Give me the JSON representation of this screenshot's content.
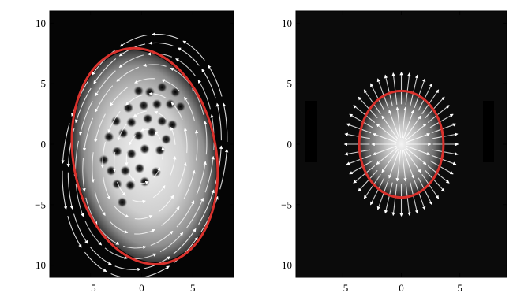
{
  "chart_data": [
    {
      "type": "heatmap",
      "description_tag": "left",
      "xlim": [
        -9,
        9
      ],
      "ylim": [
        -11,
        11
      ],
      "x_ticks": [
        -5,
        0,
        5
      ],
      "x_tick_labels": [
        "−5",
        "0",
        "5"
      ],
      "y_ticks": [
        -10,
        -5,
        0,
        5,
        10
      ],
      "y_tick_labels": [
        "−10",
        "−5",
        "0",
        "5",
        "10"
      ],
      "boundary": {
        "cx": 0.3,
        "cy": -1.0,
        "rx": 7.0,
        "ry": 9.0,
        "tilt_deg": -10
      },
      "vortices": [
        [
          -0.3,
          4.4
        ],
        [
          0.8,
          4.3
        ],
        [
          2.0,
          4.7
        ],
        [
          3.3,
          4.3
        ],
        [
          -1.3,
          3.0
        ],
        [
          0.2,
          3.2
        ],
        [
          1.5,
          3.3
        ],
        [
          2.8,
          3.3
        ],
        [
          3.8,
          3.1
        ],
        [
          -2.5,
          1.9
        ],
        [
          -1.0,
          1.8
        ],
        [
          0.6,
          2.1
        ],
        [
          2.0,
          1.9
        ],
        [
          3.0,
          1.6
        ],
        [
          -3.2,
          0.6
        ],
        [
          -1.8,
          0.9
        ],
        [
          -0.3,
          0.7
        ],
        [
          1.0,
          1.0
        ],
        [
          2.4,
          0.4
        ],
        [
          -3.7,
          -1.3
        ],
        [
          -2.4,
          -0.6
        ],
        [
          -1.0,
          -0.8
        ],
        [
          0.3,
          -0.4
        ],
        [
          1.8,
          -0.5
        ],
        [
          -3.0,
          -2.2
        ],
        [
          -1.6,
          -2.2
        ],
        [
          -0.2,
          -2.0
        ],
        [
          1.4,
          -2.3
        ],
        [
          -2.4,
          -3.3
        ],
        [
          -1.1,
          -3.4
        ],
        [
          0.3,
          -3.1
        ],
        [
          -1.9,
          -4.8
        ]
      ],
      "flow": "circulating",
      "colors": {
        "background": "#050505",
        "boundary": "#d9322d",
        "streamline": "#ffffff",
        "vortex": "#111111"
      }
    },
    {
      "type": "heatmap",
      "description_tag": "right",
      "xlim": [
        -9,
        9
      ],
      "ylim": [
        -11,
        11
      ],
      "x_ticks": [
        -5,
        0,
        5
      ],
      "x_tick_labels": [
        "−5",
        "0",
        "5"
      ],
      "y_ticks": [
        -10,
        -5,
        0,
        5,
        10
      ],
      "y_tick_labels": [
        "−10",
        "−5",
        "0",
        "5",
        "10"
      ],
      "boundary": {
        "cx": 0.0,
        "cy": 0.0,
        "rx": 3.6,
        "ry": 4.4,
        "tilt_deg": 0
      },
      "vortices": [],
      "flow": "radial",
      "colors": {
        "background": "#0b0b0b",
        "boundary": "#d9322d",
        "streamline": "#ffffff",
        "vortex": "#111111"
      }
    }
  ]
}
